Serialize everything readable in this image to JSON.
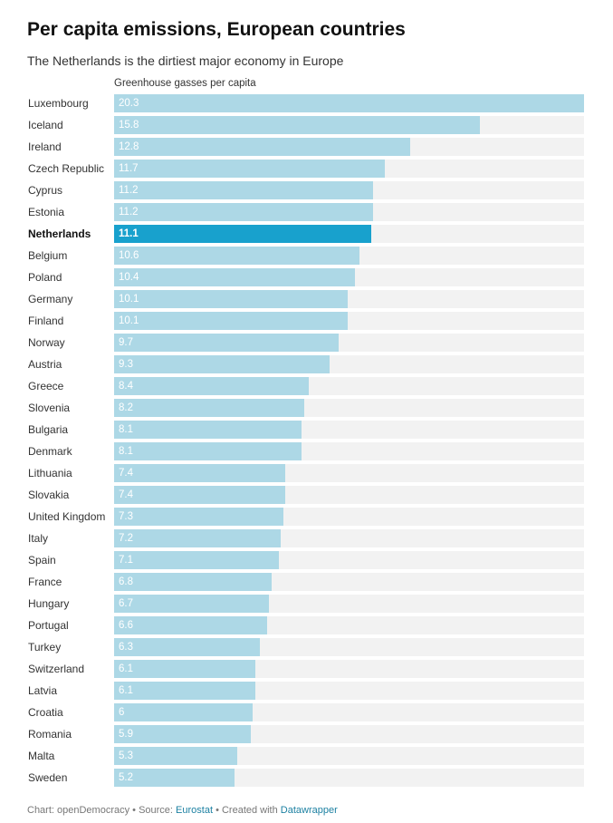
{
  "colors": {
    "bar": "#add8e6",
    "bar_highlight": "#18a1cd",
    "track": "#f2f2f2",
    "link": "#1d81a2"
  },
  "chart_data": {
    "type": "bar",
    "orientation": "horizontal",
    "title": "Per capita emissions, European countries",
    "subtitle": "The Netherlands is the dirtiest major economy in Europe",
    "column_header": "Greenhouse gasses per capita",
    "highlight": "Netherlands",
    "xlim": [
      0,
      20.3
    ],
    "categories": [
      "Luxembourg",
      "Iceland",
      "Ireland",
      "Czech Republic",
      "Cyprus",
      "Estonia",
      "Netherlands",
      "Belgium",
      "Poland",
      "Germany",
      "Finland",
      "Norway",
      "Austria",
      "Greece",
      "Slovenia",
      "Bulgaria",
      "Denmark",
      "Lithuania",
      "Slovakia",
      "United Kingdom",
      "Italy",
      "Spain",
      "France",
      "Hungary",
      "Portugal",
      "Turkey",
      "Switzerland",
      "Latvia",
      "Croatia",
      "Romania",
      "Malta",
      "Sweden"
    ],
    "values": [
      20.3,
      15.8,
      12.8,
      11.7,
      11.2,
      11.2,
      11.1,
      10.6,
      10.4,
      10.1,
      10.1,
      9.7,
      9.3,
      8.4,
      8.2,
      8.1,
      8.1,
      7.4,
      7.4,
      7.3,
      7.2,
      7.1,
      6.8,
      6.7,
      6.6,
      6.3,
      6.1,
      6.1,
      6,
      5.9,
      5.3,
      5.2
    ]
  },
  "footer": {
    "prefix": "Chart: openDemocracy • Source: ",
    "source_link": "Eurostat",
    "middle": " • Created with ",
    "tool_link": "Datawrapper"
  }
}
